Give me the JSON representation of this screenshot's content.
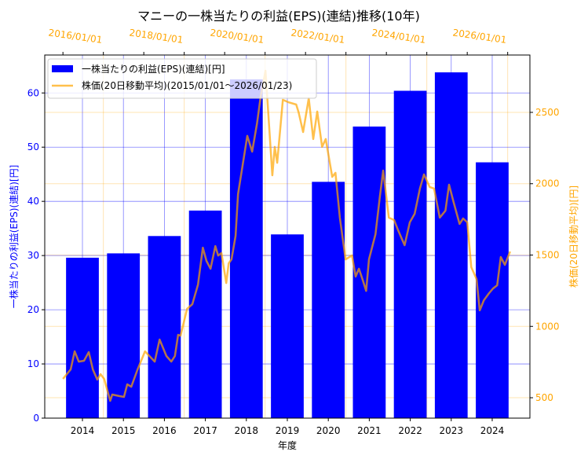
{
  "chart_data": {
    "type": "bar+line",
    "title": "マニーの一株当たりの利益(EPS)(連結)推移(10年)",
    "xlabel": "年度",
    "ylabel_left": "一株当たりの利益(EPS)(連結)[円]",
    "ylabel_right": "株価(20日移動平均)[円]",
    "categories": [
      "2014",
      "2015",
      "2016",
      "2017",
      "2018",
      "2019",
      "2020",
      "2021",
      "2022",
      "2023",
      "2024"
    ],
    "eps": {
      "name": "一株当たりの利益(EPS)(連結)[円]",
      "values": [
        29.6,
        30.4,
        33.6,
        38.3,
        62.5,
        33.9,
        43.6,
        53.8,
        60.4,
        63.8,
        47.2
      ],
      "color": "#0000ff"
    },
    "price": {
      "name": "株価(20日移動平均)(2015/01/01～2026/01/23)",
      "color": "#ffa500",
      "x": [
        2015.0,
        2015.19,
        2015.29,
        2015.39,
        2015.52,
        2015.64,
        2015.74,
        2015.85,
        2015.93,
        2016.02,
        2016.17,
        2016.22,
        2016.4,
        2016.51,
        2016.59,
        2016.69,
        2016.84,
        2017.03,
        2017.27,
        2017.39,
        2017.56,
        2017.68,
        2017.77,
        2017.85,
        2017.91,
        2018.07,
        2018.2,
        2018.34,
        2018.46,
        2018.55,
        2018.65,
        2018.77,
        2018.84,
        2018.92,
        2019.04,
        2019.1,
        2019.17,
        2019.27,
        2019.33,
        2019.56,
        2019.68,
        2019.8,
        2019.89,
        2020.01,
        2020.18,
        2020.24,
        2020.3,
        2020.44,
        2020.57,
        2020.77,
        2020.83,
        2020.94,
        2021.08,
        2021.19,
        2021.29,
        2021.41,
        2021.5,
        2021.66,
        2021.74,
        2021.85,
        2021.99,
        2022.15,
        2022.24,
        2022.32,
        2022.42,
        2022.5,
        2022.57,
        2022.73,
        2022.84,
        2022.92,
        2023.06,
        2023.19,
        2023.29,
        2023.45,
        2023.58,
        2023.7,
        2023.83,
        2023.93,
        2024.07,
        2024.18,
        2024.32,
        2024.46,
        2024.55,
        2024.65,
        2024.81,
        2024.9,
        2025.0,
        2025.1,
        2025.23,
        2025.31,
        2025.41,
        2025.54,
        2025.64,
        2025.74,
        2025.83,
        2025.93,
        2026.06
      ],
      "y": [
        632,
        698,
        825,
        753,
        759,
        820,
        698,
        627,
        665,
        632,
        478,
        522,
        511,
        506,
        594,
        577,
        693,
        825,
        753,
        908,
        792,
        753,
        792,
        941,
        935,
        1123,
        1156,
        1293,
        1552,
        1459,
        1404,
        1563,
        1497,
        1514,
        1304,
        1442,
        1470,
        1635,
        1927,
        2335,
        2225,
        2423,
        2610,
        2792,
        2059,
        2258,
        2147,
        2588,
        2572,
        2555,
        2500,
        2362,
        2599,
        2313,
        2506,
        2258,
        2313,
        2048,
        2076,
        1762,
        1470,
        1497,
        1349,
        1404,
        1321,
        1249,
        1470,
        1646,
        1911,
        2092,
        1762,
        1745,
        1674,
        1569,
        1729,
        1789,
        1966,
        2065,
        1977,
        1966,
        1762,
        1811,
        1993,
        1883,
        1718,
        1756,
        1729,
        1415,
        1332,
        1112,
        1183,
        1233,
        1266,
        1288,
        1486,
        1431,
        1525
      ]
    },
    "ylim_left": [
      0,
      67
    ],
    "yticks_left": [
      0,
      10,
      20,
      30,
      40,
      50,
      60
    ],
    "ylim_right": [
      357,
      2902
    ],
    "yticks_right": [
      500,
      1000,
      1500,
      2000,
      2500
    ],
    "top_xlim": [
      2014.55,
      2026.55
    ],
    "top_ticks": [
      {
        "v": 2016,
        "label": "2016/01/01"
      },
      {
        "v": 2018,
        "label": "2018/01/01"
      },
      {
        "v": 2020,
        "label": "2020/01/01"
      },
      {
        "v": 2022,
        "label": "2022/01/01"
      },
      {
        "v": 2024,
        "label": "2024/01/01"
      },
      {
        "v": 2026,
        "label": "2026/01/01"
      }
    ],
    "legend": {
      "position": "top-left",
      "entries": [
        "一株当たりの利益(EPS)(連結)[円]",
        "株価(20日移動平均)(2015/01/01～2026/01/23)"
      ]
    },
    "grid": true
  }
}
